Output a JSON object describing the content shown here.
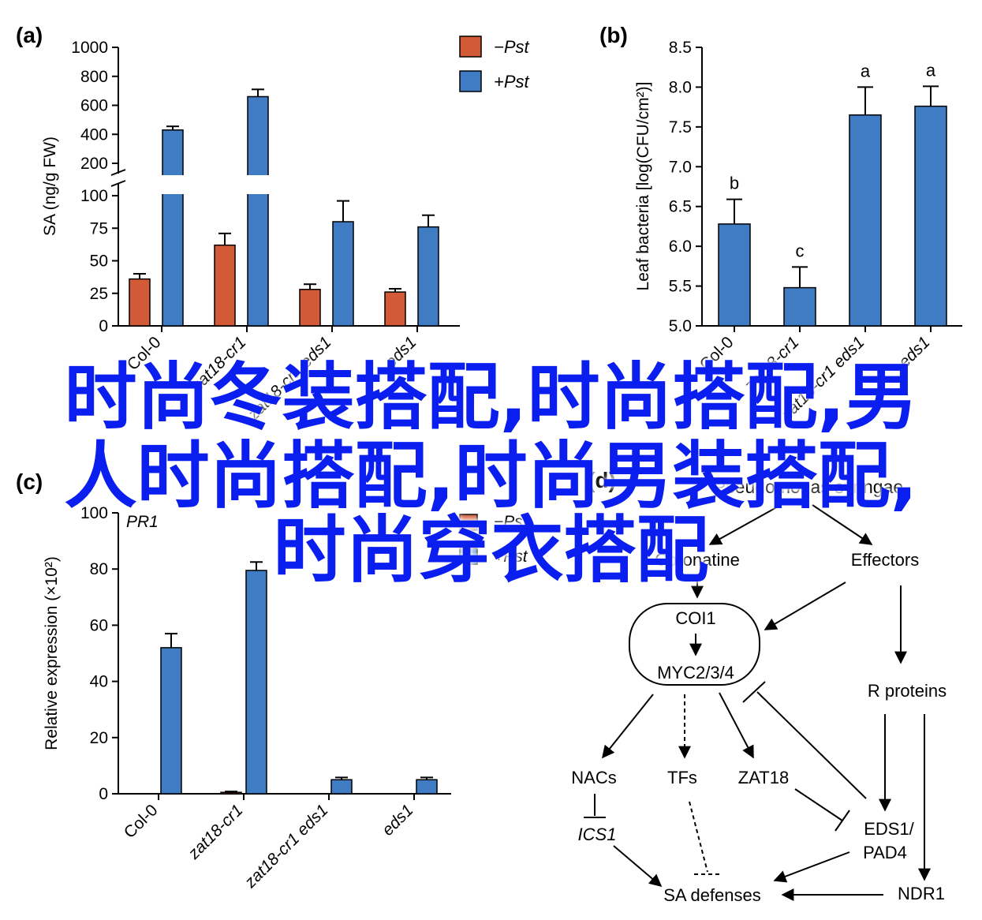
{
  "colors": {
    "minus": "#d35a37",
    "plus": "#3f7cc4",
    "overlay": "#0a1ef0"
  },
  "panel_letters": {
    "a": "a",
    "b": "b",
    "c": "c",
    "d": "d"
  },
  "legend": {
    "minus": "−Pst",
    "plus": "+Pst"
  },
  "overlay_text": {
    "line1": "时尚冬装搭配,时尚搭配,男",
    "line2": "人时尚搭配,时尚男装搭配,",
    "line3": "时尚穿衣搭配"
  },
  "chart_data": [
    {
      "id": "a",
      "type": "bar",
      "ylabel": "SA (ng/g FW)",
      "categories": [
        "Col-0",
        "zat18-cr1",
        "zat18-cr1 eds1",
        "eds1"
      ],
      "axis_break": {
        "lower": [
          0,
          100
        ],
        "upper": [
          100,
          1000
        ]
      },
      "yticks_lower": [
        "0",
        "25",
        "50",
        "75",
        "100"
      ],
      "yticks_upper": [
        "200",
        "400",
        "600",
        "800",
        "1000"
      ],
      "series": [
        {
          "name": "−Pst",
          "values": [
            36,
            62,
            28,
            26
          ],
          "errors": [
            4,
            9,
            4,
            2.5
          ]
        },
        {
          "name": "+Pst",
          "values": [
            430,
            660,
            80,
            76
          ],
          "errors": [
            25,
            50,
            16,
            9
          ]
        }
      ]
    },
    {
      "id": "b",
      "type": "bar",
      "ylabel": "Leaf bacteria [log(CFU/cm²)]",
      "categories": [
        "Col-0",
        "zat18-cr1",
        "zat18-cr1 eds1",
        "eds1"
      ],
      "ylim": [
        5.0,
        8.5
      ],
      "yticks": [
        "5.0",
        "5.5",
        "6.0",
        "6.5",
        "7.0",
        "7.5",
        "8.0",
        "8.5"
      ],
      "series": [
        {
          "name": "",
          "values": [
            6.28,
            5.48,
            7.65,
            7.76
          ],
          "errors": [
            0.31,
            0.26,
            0.35,
            0.25
          ],
          "letters": [
            "b",
            "c",
            "a",
            "a"
          ]
        }
      ]
    },
    {
      "id": "c",
      "type": "bar",
      "title": "PR1",
      "ylabel": "Relative expression (×10²)",
      "categories": [
        "Col-0",
        "zat18-cr1",
        "zat18-cr1 eds1",
        "eds1"
      ],
      "ylim": [
        0,
        100
      ],
      "yticks": [
        "0",
        "20",
        "40",
        "60",
        "80",
        "100"
      ],
      "series": [
        {
          "name": "−Pst",
          "values": [
            0,
            0.5,
            0,
            0
          ],
          "errors": [
            0,
            0.3,
            0,
            0
          ]
        },
        {
          "name": "+Pst",
          "values": [
            52,
            79.5,
            5,
            5
          ],
          "errors": [
            5,
            3,
            0.8,
            0.8
          ]
        }
      ]
    }
  ],
  "diagram": {
    "nodes": {
      "pst": "Pseudomonas syringae",
      "coronatine": "Coronatine",
      "effectors": "Effectors",
      "coi1": "COI1",
      "myc": "MYC2/3/4",
      "rproteins": "R proteins",
      "nacs": "NACs",
      "tfs": "TFs",
      "zat18": "ZAT18",
      "ics1": "ICS1",
      "eds1": "EDS1/",
      "pad4": "PAD4",
      "sa": "SA defenses",
      "ndr1": "NDR1"
    }
  }
}
